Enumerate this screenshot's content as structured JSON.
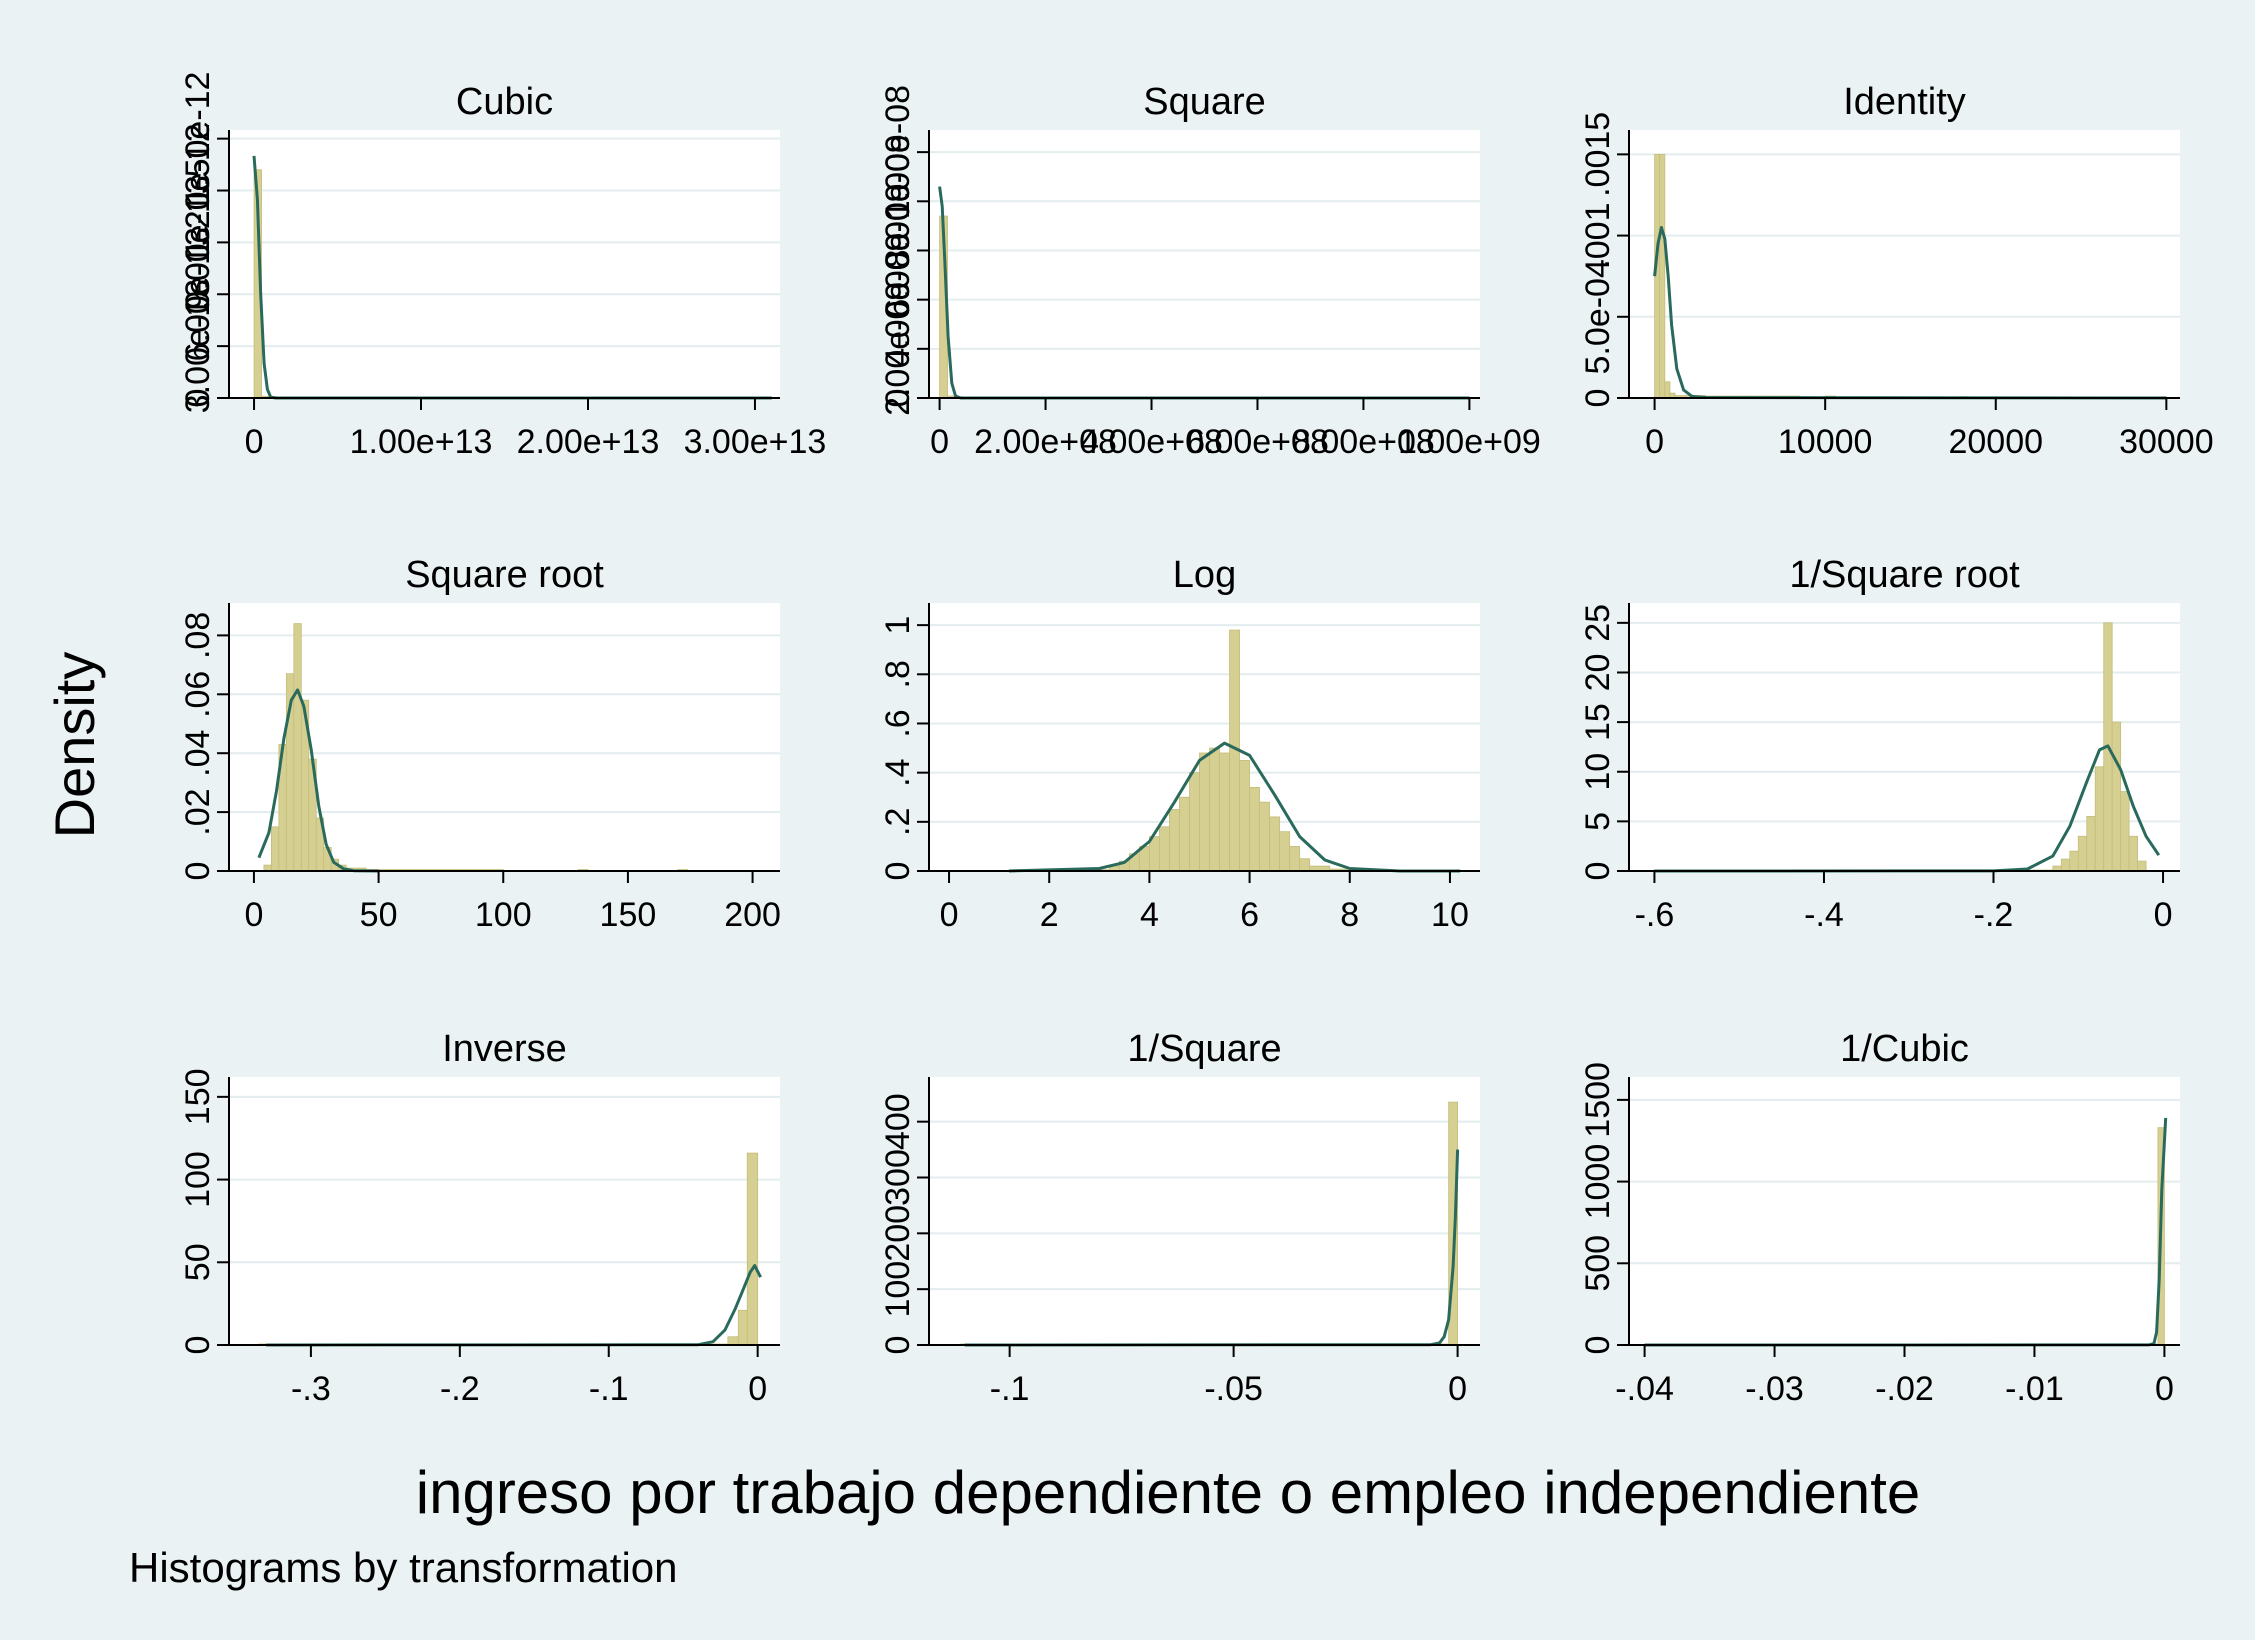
{
  "figure": {
    "ylabel": "Density",
    "xlabel": "ingreso por trabajo dependiente o empleo independiente",
    "note": "Histograms by transformation"
  },
  "colors": {
    "background": "#eaf2f3",
    "panel": "#ffffff",
    "grid": "#e3ecee",
    "bar_fill": "#d5cf92",
    "bar_edge": "#c4bd7a",
    "curve": "#2a6a5c"
  },
  "chart_data": [
    {
      "type": "bar",
      "title": "Cubic",
      "xlim": [
        -1500000000000.0,
        31500000000000.0
      ],
      "ylim": [
        0,
        1.55e-12
      ],
      "xticks": [
        0,
        10000000000000.0,
        20000000000000.0,
        30000000000000.0
      ],
      "xtick_labels": [
        "0",
        "1.00e+13",
        "2.00e+13",
        "3.00e+13"
      ],
      "yticks": [
        0,
        3e-13,
        6e-13,
        9e-13,
        1.2e-12,
        1.5e-12
      ],
      "ytick_labels": [
        "0",
        "3.00e-13",
        "6.00e-13",
        "9.00e-13",
        "1.20e-12",
        "1.50e-12"
      ],
      "bins": [
        [
          0,
          450000000000.0,
          1.32e-12
        ],
        [
          450000000000.0,
          900000000000.0,
          1e-14
        ],
        [
          900000000000.0,
          1350000000000.0,
          8e-15
        ],
        [
          6000000000000.0,
          6450000000000.0,
          4e-15
        ],
        [
          26800000000000.0,
          27200000000000.0,
          4e-15
        ]
      ],
      "curve": [
        [
          0,
          1.4e-12
        ],
        [
          200000000000.0,
          1.15e-12
        ],
        [
          400000000000.0,
          6e-13
        ],
        [
          600000000000.0,
          2e-13
        ],
        [
          800000000000.0,
          5e-14
        ],
        [
          1000000000000.0,
          5e-15
        ],
        [
          1300000000000.0,
          0
        ],
        [
          31000000000000.0,
          0
        ]
      ]
    },
    {
      "type": "bar",
      "title": "Square",
      "xlim": [
        -20000000.0,
        1020000000.0
      ],
      "ylim": [
        0,
        1.09e-08
      ],
      "xticks": [
        0,
        200000000.0,
        400000000.0,
        600000000.0,
        800000000.0,
        1000000000.0
      ],
      "xtick_labels": [
        "0",
        "2.00e+08",
        "4.00e+08",
        "6.00e+08",
        "8.00e+08",
        "1.00e+09"
      ],
      "yticks": [
        0,
        2e-09,
        4e-09,
        6e-09,
        8e-09,
        1e-08
      ],
      "ytick_labels": [
        "0",
        "2.00e-09",
        "4.00e-09",
        "6.00e-09",
        "8.00e-09",
        "1.00e-08"
      ],
      "bins": [
        [
          0,
          15000000.0,
          7.4e-09
        ],
        [
          15000000.0,
          30000000.0,
          8e-11
        ],
        [
          30000000.0,
          45000000.0,
          5e-11
        ],
        [
          105000000.0,
          120000000.0,
          3e-11
        ],
        [
          330000000.0,
          345000000.0,
          3e-11
        ],
        [
          915000000.0,
          930000000.0,
          3e-11
        ]
      ],
      "curve": [
        [
          0,
          8.6e-09
        ],
        [
          5000000.0,
          7.8e-09
        ],
        [
          10000000.0,
          5.5e-09
        ],
        [
          16000000.0,
          2.5e-09
        ],
        [
          23000000.0,
          6e-10
        ],
        [
          30000000.0,
          8e-11
        ],
        [
          40000000.0,
          0
        ],
        [
          1000000000.0,
          0
        ]
      ]
    },
    {
      "type": "bar",
      "title": "Identity",
      "xlim": [
        -1500,
        30800
      ],
      "ylim": [
        0,
        0.00165
      ],
      "xticks": [
        0,
        10000,
        20000,
        30000
      ],
      "xtick_labels": [
        "0",
        "10000",
        "20000",
        "30000"
      ],
      "yticks": [
        0,
        0.0005,
        0.001,
        0.0015
      ],
      "ytick_labels": [
        "0",
        "5.0e-04",
        ".001",
        ".0015"
      ],
      "bins": [
        [
          0,
          300,
          0.0015
        ],
        [
          300,
          600,
          0.0015
        ],
        [
          600,
          900,
          0.0001
        ],
        [
          900,
          1200,
          3e-05
        ],
        [
          1200,
          3000,
          1.5e-05
        ],
        [
          3000,
          8500,
          1.2e-05
        ],
        [
          10000,
          10600,
          1.2e-05
        ],
        [
          17900,
          18300,
          8e-06
        ],
        [
          29700,
          30000,
          8e-06
        ]
      ],
      "curve": [
        [
          0,
          0.00075
        ],
        [
          200,
          0.00095
        ],
        [
          400,
          0.00105
        ],
        [
          600,
          0.00098
        ],
        [
          800,
          0.00075
        ],
        [
          1000,
          0.00045
        ],
        [
          1300,
          0.00018
        ],
        [
          1700,
          5e-05
        ],
        [
          2200,
          1e-05
        ],
        [
          3000,
          3e-06
        ],
        [
          30000,
          0
        ]
      ]
    },
    {
      "type": "bar",
      "title": "Square root",
      "xlim": [
        -10,
        211
      ],
      "ylim": [
        0,
        0.091
      ],
      "xticks": [
        0,
        50,
        100,
        150,
        200
      ],
      "xtick_labels": [
        "0",
        "50",
        "100",
        "150",
        "200"
      ],
      "yticks": [
        0,
        0.02,
        0.04,
        0.06,
        0.08
      ],
      "ytick_labels": [
        "0",
        ".02",
        ".04",
        ".06",
        ".08"
      ],
      "bins": [
        [
          4,
          7,
          0.002
        ],
        [
          7,
          10,
          0.015
        ],
        [
          10,
          13,
          0.043
        ],
        [
          13,
          16,
          0.067
        ],
        [
          16,
          19,
          0.084
        ],
        [
          19,
          22,
          0.058
        ],
        [
          22,
          25,
          0.038
        ],
        [
          25,
          28,
          0.018
        ],
        [
          28,
          31,
          0.008
        ],
        [
          31,
          34,
          0.004
        ],
        [
          34,
          37,
          0.002
        ],
        [
          37,
          45,
          0.001
        ],
        [
          45,
          100,
          0.0005
        ],
        [
          130,
          134,
          0.0005
        ],
        [
          170,
          174,
          0.0005
        ]
      ],
      "curve": [
        [
          2,
          0.0045
        ],
        [
          6,
          0.013
        ],
        [
          9,
          0.027
        ],
        [
          12,
          0.045
        ],
        [
          15,
          0.058
        ],
        [
          17.5,
          0.0615
        ],
        [
          20,
          0.056
        ],
        [
          23,
          0.041
        ],
        [
          26,
          0.022
        ],
        [
          29,
          0.009
        ],
        [
          32,
          0.003
        ],
        [
          36,
          0.0007
        ],
        [
          40,
          0.0001
        ],
        [
          50,
          0
        ]
      ]
    },
    {
      "type": "bar",
      "title": "Log",
      "xlim": [
        -0.4,
        10.6
      ],
      "ylim": [
        0,
        1.09
      ],
      "xticks": [
        0,
        2,
        4,
        6,
        8,
        10
      ],
      "xtick_labels": [
        "0",
        "2",
        "4",
        "6",
        "8",
        "10"
      ],
      "yticks": [
        0,
        0.2,
        0.4,
        0.6,
        0.8,
        1
      ],
      "ytick_labels": [
        "0",
        ".2",
        ".4",
        ".6",
        ".8",
        "1"
      ],
      "bins": [
        [
          1.2,
          3.2,
          0.005
        ],
        [
          3.2,
          3.4,
          0.02
        ],
        [
          3.4,
          3.6,
          0.04
        ],
        [
          3.6,
          3.8,
          0.07
        ],
        [
          3.8,
          4.0,
          0.1
        ],
        [
          4.0,
          4.2,
          0.14
        ],
        [
          4.2,
          4.4,
          0.18
        ],
        [
          4.4,
          4.6,
          0.25
        ],
        [
          4.6,
          4.8,
          0.3
        ],
        [
          4.8,
          5.0,
          0.4
        ],
        [
          5.0,
          5.2,
          0.48
        ],
        [
          5.2,
          5.4,
          0.5
        ],
        [
          5.4,
          5.6,
          0.48
        ],
        [
          5.6,
          5.8,
          0.98
        ],
        [
          5.8,
          6.0,
          0.45
        ],
        [
          6.0,
          6.2,
          0.34
        ],
        [
          6.2,
          6.4,
          0.28
        ],
        [
          6.4,
          6.6,
          0.22
        ],
        [
          6.6,
          6.8,
          0.16
        ],
        [
          6.8,
          7.0,
          0.1
        ],
        [
          7.0,
          7.2,
          0.05
        ],
        [
          7.2,
          7.6,
          0.02
        ],
        [
          7.6,
          8.4,
          0.008
        ],
        [
          8.4,
          10.2,
          0.004
        ]
      ],
      "curve": [
        [
          1.2,
          0
        ],
        [
          3,
          0.01
        ],
        [
          3.5,
          0.035
        ],
        [
          4,
          0.12
        ],
        [
          4.5,
          0.28
        ],
        [
          5,
          0.45
        ],
        [
          5.5,
          0.52
        ],
        [
          6,
          0.47
        ],
        [
          6.5,
          0.31
        ],
        [
          7,
          0.14
        ],
        [
          7.5,
          0.045
        ],
        [
          8,
          0.01
        ],
        [
          9,
          0
        ],
        [
          10.2,
          0
        ]
      ]
    },
    {
      "type": "bar",
      "title": "1/Square root",
      "xlim": [
        -0.63,
        0.02
      ],
      "ylim": [
        0,
        27
      ],
      "xticks": [
        -0.6,
        -0.4,
        -0.2,
        0
      ],
      "xtick_labels": [
        "-.6",
        "-.4",
        "-.2",
        "0"
      ],
      "yticks": [
        0,
        5,
        10,
        15,
        20,
        25
      ],
      "ytick_labels": [
        "0",
        "5",
        "10",
        "15",
        "20",
        "25"
      ],
      "bins": [
        [
          -0.6,
          -0.13,
          0.1
        ],
        [
          -0.13,
          -0.12,
          0.5
        ],
        [
          -0.12,
          -0.11,
          1.2
        ],
        [
          -0.11,
          -0.1,
          2.0
        ],
        [
          -0.1,
          -0.09,
          3.5
        ],
        [
          -0.09,
          -0.08,
          5.5
        ],
        [
          -0.08,
          -0.07,
          10.5
        ],
        [
          -0.07,
          -0.06,
          25.0
        ],
        [
          -0.06,
          -0.05,
          15.0
        ],
        [
          -0.05,
          -0.04,
          8.0
        ],
        [
          -0.04,
          -0.03,
          3.5
        ],
        [
          -0.03,
          -0.02,
          1.0
        ]
      ],
      "curve": [
        [
          -0.6,
          0
        ],
        [
          -0.2,
          0.01
        ],
        [
          -0.16,
          0.2
        ],
        [
          -0.13,
          1.5
        ],
        [
          -0.11,
          4.5
        ],
        [
          -0.09,
          9
        ],
        [
          -0.075,
          12.2
        ],
        [
          -0.065,
          12.6
        ],
        [
          -0.05,
          10.2
        ],
        [
          -0.035,
          6.5
        ],
        [
          -0.02,
          3.5
        ],
        [
          -0.005,
          1.6
        ]
      ]
    },
    {
      "type": "bar",
      "title": "Inverse",
      "xlim": [
        -0.355,
        0.015
      ],
      "ylim": [
        0,
        162
      ],
      "xticks": [
        -0.3,
        -0.2,
        -0.1,
        0
      ],
      "xtick_labels": [
        "-.3",
        "-.2",
        "-.1",
        "0"
      ],
      "yticks": [
        0,
        50,
        100,
        150
      ],
      "ytick_labels": [
        "0",
        "50",
        "100",
        "150"
      ],
      "bins": [
        [
          -0.335,
          -0.02,
          0.3
        ],
        [
          -0.02,
          -0.013,
          5
        ],
        [
          -0.013,
          -0.007,
          21
        ],
        [
          -0.007,
          0,
          116
        ]
      ],
      "curve": [
        [
          -0.33,
          0
        ],
        [
          -0.04,
          0.2
        ],
        [
          -0.03,
          2
        ],
        [
          -0.022,
          9
        ],
        [
          -0.015,
          22
        ],
        [
          -0.01,
          33
        ],
        [
          -0.005,
          44
        ],
        [
          -0.002,
          48
        ],
        [
          0.002,
          41
        ]
      ]
    },
    {
      "type": "bar",
      "title": "1/Square",
      "xlim": [
        -0.118,
        0.005
      ],
      "ylim": [
        0,
        480
      ],
      "xticks": [
        -0.1,
        -0.05,
        0
      ],
      "xtick_labels": [
        "-.1",
        "-.05",
        "0"
      ],
      "yticks": [
        0,
        100,
        200,
        300,
        400
      ],
      "ytick_labels": [
        "0",
        "100",
        "200",
        "300",
        "400"
      ],
      "bins": [
        [
          -0.111,
          -0.002,
          0.5
        ],
        [
          -0.002,
          0,
          435
        ]
      ],
      "curve": [
        [
          -0.11,
          0
        ],
        [
          -0.006,
          0.5
        ],
        [
          -0.004,
          4
        ],
        [
          -0.003,
          15
        ],
        [
          -0.002,
          45
        ],
        [
          -0.001,
          140
        ],
        [
          -0.0005,
          230
        ],
        [
          0,
          350
        ]
      ]
    },
    {
      "type": "bar",
      "title": "1/Cubic",
      "xlim": [
        -0.0412,
        0.0012
      ],
      "ylim": [
        0,
        1640
      ],
      "xticks": [
        -0.04,
        -0.03,
        -0.02,
        -0.01,
        0
      ],
      "xtick_labels": [
        "-.04",
        "-.03",
        "-.02",
        "-.01",
        "0"
      ],
      "yticks": [
        0,
        500,
        1000,
        1500
      ],
      "ytick_labels": [
        "0",
        "500",
        "1000",
        "1500"
      ],
      "bins": [
        [
          -0.037,
          -0.0005,
          1
        ],
        [
          -0.0005,
          0,
          1330
        ]
      ],
      "curve": [
        [
          -0.04,
          0
        ],
        [
          -0.0012,
          0.5
        ],
        [
          -0.0008,
          10
        ],
        [
          -0.0006,
          80
        ],
        [
          -0.0004,
          400
        ],
        [
          -0.0002,
          950
        ],
        [
          0.0001,
          1390
        ]
      ]
    }
  ]
}
